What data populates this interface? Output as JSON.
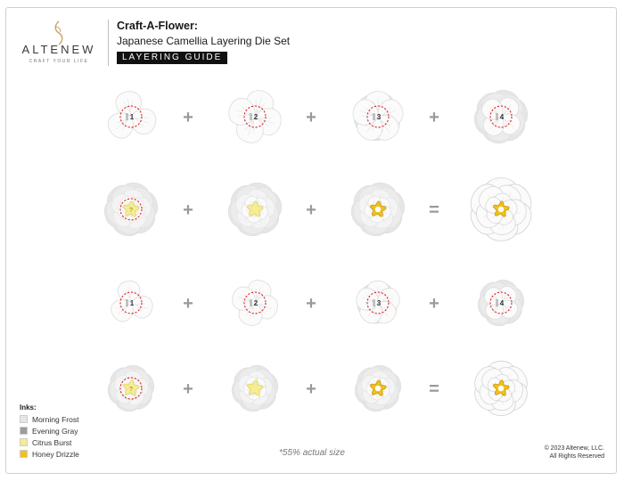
{
  "brand": {
    "name": "ALTENEW",
    "tagline": "CRAFT YOUR LIFE"
  },
  "header": {
    "title": "Craft-A-Flower:",
    "subtitle": "Japanese Camellia Layering Die Set",
    "badge": "LAYERING GUIDE"
  },
  "rows": [
    {
      "type": "petals",
      "style": "large",
      "steps": [
        "1",
        "2",
        "3",
        "4"
      ],
      "operators": [
        "+",
        "+",
        "+"
      ]
    },
    {
      "type": "centers",
      "style": "large",
      "operators": [
        "+",
        "+",
        "="
      ]
    },
    {
      "type": "petals",
      "style": "small",
      "steps": [
        "1",
        "2",
        "3",
        "4"
      ],
      "operators": [
        "+",
        "+",
        "+"
      ]
    },
    {
      "type": "centers",
      "style": "small",
      "operators": [
        "+",
        "+",
        "="
      ]
    }
  ],
  "inks": {
    "title": "Inks:",
    "items": [
      {
        "label": "Morning Frost",
        "color": "#e6e6e6"
      },
      {
        "label": "Evening Gray",
        "color": "#9c9c9c"
      },
      {
        "label": "Citrus Burst",
        "color": "#f6ec92"
      },
      {
        "label": "Honey Drizzle",
        "color": "#f2c11a"
      }
    ]
  },
  "note": "*55% actual size",
  "copyright": {
    "line1": "© 2023 Altenew, LLC.",
    "line2": "All Rights Reserved"
  },
  "colors": {
    "guide_circle": "#d8282c",
    "operator": "#9a9a9a",
    "petal_white": "#fbfbfb",
    "petal_shadow": "#dcdcdc",
    "morning_frost": "#e6e6e6",
    "evening_gray": "#9c9c9c",
    "citrus_burst": "#f6ec92",
    "honey_drizzle": "#f2c11a"
  }
}
